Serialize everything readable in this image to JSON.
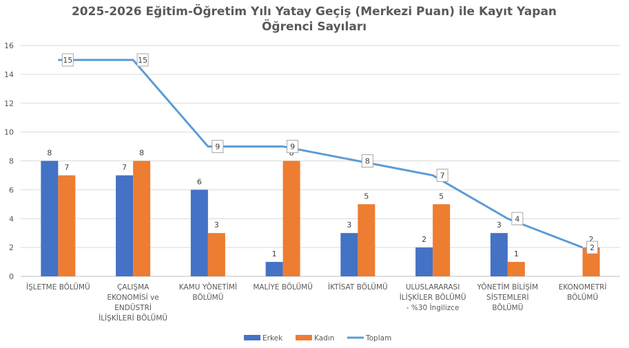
{
  "chart_data": {
    "type": "bar",
    "title": "2025-2026 Eğitim-Öğretim Yılı Yatay Geçiş (Merkezi Puan) ile Kayıt Yapan Öğrenci Sayıları",
    "title_lines": [
      "2025-2026 Eğitim-Öğretim Yılı Yatay Geçiş (Merkezi Puan) ile Kayıt Yapan",
      "Öğrenci Sayıları"
    ],
    "categories": [
      [
        "İŞLETME BÖLÜMÜ"
      ],
      [
        "ÇALIŞMA",
        "EKONOMİSİ ve",
        "ENDÜSTRİ",
        "İLİŞKİLERİ BÖLÜMÜ"
      ],
      [
        "KAMU YÖNETİMİ",
        "BÖLÜMÜ"
      ],
      [
        "MALİYE BÖLÜMÜ"
      ],
      [
        "İKTİSAT BÖLÜMÜ"
      ],
      [
        "ULUSLARARASI",
        "İLİŞKİLER BÖLÜMÜ",
        "- %30 İngilizce"
      ],
      [
        "YÖNETİM BİLİŞİM",
        "SİSTEMLERİ",
        "BÖLÜMÜ"
      ],
      [
        "EKONOMETRİ",
        "BÖLÜMÜ"
      ]
    ],
    "series": [
      {
        "name": "Erkek",
        "type": "bar",
        "color": "#4472C4",
        "values": [
          8,
          7,
          6,
          1,
          3,
          2,
          3,
          null
        ]
      },
      {
        "name": "Kadın",
        "type": "bar",
        "color": "#ED7D31",
        "values": [
          7,
          8,
          3,
          8,
          5,
          5,
          1,
          2
        ]
      },
      {
        "name": "Toplam",
        "type": "line",
        "color": "#5B9BD5",
        "values": [
          15,
          15,
          9,
          9,
          8,
          7,
          4,
          2
        ]
      }
    ],
    "ylim": [
      0,
      16
    ],
    "yticks": [
      0,
      2,
      4,
      6,
      8,
      10,
      12,
      14,
      16
    ],
    "grid": true,
    "legend": "bottom"
  }
}
